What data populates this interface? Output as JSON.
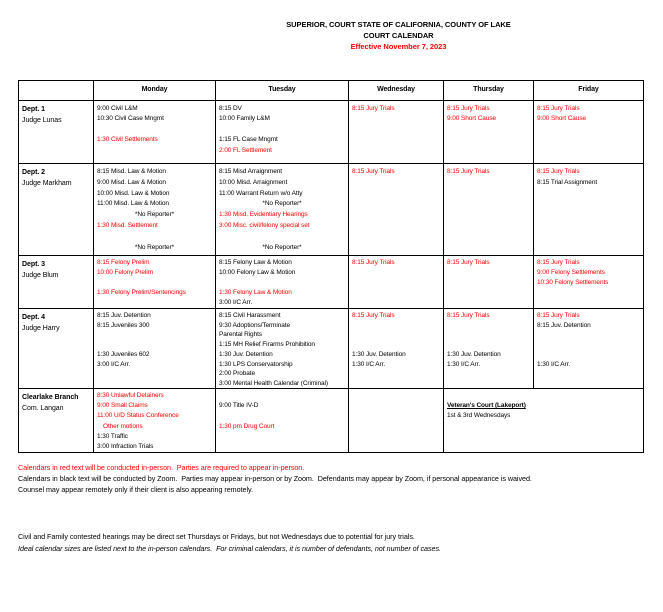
{
  "title": {
    "line1": "SUPERIOR, COURT STATE OF CALIFORNIA, COUNTY OF LAKE",
    "line2": "COURT CALENDAR",
    "line3": "Effective November 7, 2023"
  },
  "colors": {
    "red": "#ff0000",
    "black": "#000000"
  },
  "calendar": {
    "day_headers": [
      "Monday",
      "Tuesday",
      "Wednesday",
      "Thursday",
      "Friday"
    ],
    "rows": [
      {
        "dept": "Dept. 1",
        "judge": "Judge Lunas",
        "cells": [
          [
            {
              "t": "9:00 Civil L&M"
            },
            {
              "t": "10:30 Civil Case Mngmt"
            },
            {
              "t": ""
            },
            {
              "t": "1:30 Civil Settlements",
              "c": "red"
            }
          ],
          [
            {
              "t": "8:15 DV"
            },
            {
              "t": "10:00 Family L&M"
            },
            {
              "t": ""
            },
            {
              "t": "1:15 FL Case Mngmt"
            },
            {
              "t": "2:00 FL Settlement",
              "c": "red"
            }
          ],
          [
            {
              "t": "8:15 Jury Trials",
              "c": "red"
            }
          ],
          [
            {
              "t": "8:15 Jury Trials",
              "c": "red"
            },
            {
              "t": "9:00 Short Cause",
              "c": "red"
            }
          ],
          [
            {
              "t": "8:15 Jury Trials",
              "c": "red"
            },
            {
              "t": "9:00 Short Cause",
              "c": "red"
            }
          ]
        ]
      },
      {
        "dept": "Dept. 2",
        "judge": "Judge Markham",
        "cells": [
          [
            {
              "t": "8:15 Misd. Law & Motion"
            },
            {
              "t": "9:00 Misd. Law & Motion"
            },
            {
              "t": "10:00 Misd. Law & Motion"
            },
            {
              "t": "11:00 Misd. Law & Motion"
            },
            {
              "t": "*No Reporter*",
              "align": "center"
            },
            {
              "t": "1:30 Misd. Settlement",
              "c": "red"
            },
            {
              "t": ""
            },
            {
              "t": "*No Reporter*",
              "align": "center"
            }
          ],
          [
            {
              "t": "8:15 Misd Arraignment"
            },
            {
              "t": "10:00 Misd. Arraignment"
            },
            {
              "t": "11:00 Warrant Return w/o Atty"
            },
            {
              "t": "*No Reporter*",
              "align": "center"
            },
            {
              "t": "1:30 Misd. Evidentiary Hearings",
              "c": "red"
            },
            {
              "t": "3:00 Misc. civil/felony special set",
              "c": "red"
            },
            {
              "t": ""
            },
            {
              "t": "*No Reporter*",
              "align": "center"
            }
          ],
          [
            {
              "t": "8:15 Jury Trials",
              "c": "red"
            }
          ],
          [
            {
              "t": "8:15 Jury Trials",
              "c": "red"
            }
          ],
          [
            {
              "t": "8:15 Jury Trials",
              "c": "red"
            },
            {
              "t": "8:15 Trial Assignment"
            }
          ]
        ]
      },
      {
        "dept": "Dept. 3",
        "judge": "Judge Blum",
        "cells": [
          [
            {
              "t": "8:15 Felony Prelim",
              "c": "red"
            },
            {
              "t": "10:00 Felony Prelim",
              "c": "red"
            },
            {
              "t": ""
            },
            {
              "t": "1:30 Felony Prelim/Sentencings",
              "c": "red"
            }
          ],
          [
            {
              "t": "8:15 Felony Law & Motion"
            },
            {
              "t": "10:00 Felony Law & Motion"
            },
            {
              "t": ""
            },
            {
              "t": "1:30 Felony Law & Motion",
              "c": "red"
            },
            {
              "t": "3:00 I/C Arr."
            }
          ],
          [
            {
              "t": "8:15 Jury Trials",
              "c": "red"
            }
          ],
          [
            {
              "t": "8:15 Jury Trials",
              "c": "red"
            }
          ],
          [
            {
              "t": "8:15 Jury Trials",
              "c": "red"
            },
            {
              "t": "9:00 Felony Settlements",
              "c": "red"
            },
            {
              "t": "10:30 Felony Settlements",
              "c": "red"
            }
          ]
        ]
      },
      {
        "dept": "Dept. 4",
        "judge": "Judge Harry",
        "cells": [
          [
            {
              "t": "8:15 Juv. Detention"
            },
            {
              "t": "8:15 Juveniles 300"
            },
            {
              "t": ""
            },
            {
              "t": ""
            },
            {
              "t": "1:30 Juveniles 602"
            },
            {
              "t": "3:00 I/C Arr."
            }
          ],
          [
            {
              "t": "8:15 Civil Harassment"
            },
            {
              "t": "9:30 Adoptions/Terminate"
            },
            {
              "t": "Parental Rights"
            },
            {
              "t": "1:15 MH Relief Firarms Prohibition"
            },
            {
              "t": "1:30 Juv. Detention"
            },
            {
              "t": "1:30 LPS Conservatorship"
            },
            {
              "t": "2:00 Probate"
            },
            {
              "t": "3:00 Mental Health Calendar (Criminal)"
            }
          ],
          [
            {
              "t": "8:15 Jury Trials",
              "c": "red"
            },
            {
              "t": ""
            },
            {
              "t": ""
            },
            {
              "t": ""
            },
            {
              "t": "1:30 Juv. Detention"
            },
            {
              "t": "1:30 I/C Arr."
            }
          ],
          [
            {
              "t": "8:15 Jury Trials",
              "c": "red"
            },
            {
              "t": ""
            },
            {
              "t": ""
            },
            {
              "t": ""
            },
            {
              "t": "1:30 Juv. Detention"
            },
            {
              "t": "1:30 I/C Arr."
            }
          ],
          [
            {
              "t": "8:15 Jury Trials",
              "c": "red"
            },
            {
              "t": "8:15 Juv. Detention"
            },
            {
              "t": ""
            },
            {
              "t": ""
            },
            {
              "t": ""
            },
            {
              "t": "1:30 I/C Arr."
            }
          ]
        ]
      },
      {
        "dept": "Clearlake Branch",
        "judge": "Com. Langan",
        "spans": [
          1,
          1,
          1,
          2
        ],
        "cells": [
          [
            {
              "t": "8:30 Unlawful Detainers",
              "c": "red"
            },
            {
              "t": "9:00 Small Claims",
              "c": "red"
            },
            {
              "t": "11:00 U/D Status Conference",
              "c": "red"
            },
            {
              "t": "Other motions",
              "c": "red",
              "indent": true
            },
            {
              "t": "1:30 Traffic"
            },
            {
              "t": "3:00 Infraction Trials"
            }
          ],
          [
            {
              "t": ""
            },
            {
              "t": "9:00 Title IV-D"
            },
            {
              "t": ""
            },
            {
              "t": "1:30 pm Drug Court",
              "c": "red"
            }
          ],
          [],
          [
            {
              "t": ""
            },
            {
              "t": "Veteran's Court (Lakeport)",
              "bold": true,
              "underline": true
            },
            {
              "t": "1st & 3rd Wednesdays"
            }
          ]
        ]
      }
    ]
  },
  "notes": [
    {
      "text": "Calendars in red text will be conducted in-person.  Parties are required to appear in-person.",
      "c": "red"
    },
    {
      "text": "Calendars in black text will be conducted by Zoom.  Parties may appear in-person or by Zoom.  Defendants may appear by Zoom, if personal appearance is waived."
    },
    {
      "text": "Counsel may appear remotely only if their client is also appearing remotely."
    }
  ],
  "footnotes": [
    {
      "text": "Civil and Family contested hearings may be direct set Thursdays or Fridays, but not Wednesdays due to potential for jury trials."
    },
    {
      "text": "Ideal calendar sizes are listed next to the in-person calendars.  For criminal calendars, it is number of defendants, not number of cases.",
      "italic": true
    }
  ]
}
